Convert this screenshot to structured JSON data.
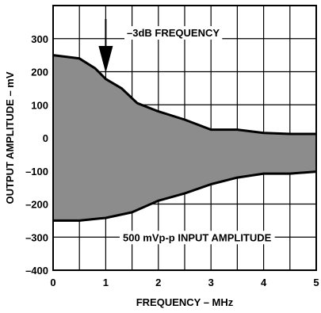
{
  "chart_data": {
    "type": "area",
    "title": "",
    "xlabel": "FREQUENCY – MHz",
    "ylabel": "OUTPUT AMPLITUDE – mV",
    "xlim": [
      0,
      5
    ],
    "ylim": [
      -400,
      400
    ],
    "x_ticks": [
      "0",
      "1",
      "2",
      "3",
      "4",
      "5"
    ],
    "y_ticks": [
      "300",
      "200",
      "100",
      "0",
      "–100",
      "–200",
      "–300",
      "–400"
    ],
    "y_tick_values": [
      300,
      200,
      100,
      0,
      -100,
      -200,
      -300,
      -400
    ],
    "x_tick_values": [
      0,
      1,
      2,
      3,
      4,
      5
    ],
    "grid": true,
    "colors": {
      "fill": "#8c8c8c",
      "line": "#000000",
      "grid": "#000000"
    },
    "series": [
      {
        "x": [
          0,
          0.5,
          0.8,
          1.0,
          1.3,
          1.6,
          2.0,
          2.5,
          3.0,
          3.5,
          4.0,
          4.5,
          5.0
        ],
        "values": [
          250,
          240,
          210,
          178,
          150,
          105,
          80,
          55,
          25,
          25,
          15,
          12,
          12
        ]
      },
      {
        "x": [
          0,
          0.5,
          1.0,
          1.5,
          2.0,
          2.5,
          3.0,
          3.5,
          4.0,
          4.5,
          5.0
        ],
        "values": [
          -250,
          -250,
          -242,
          -225,
          -190,
          -168,
          -140,
          -120,
          -108,
          -108,
          -102
        ]
      }
    ],
    "annotations": [
      {
        "text": "–3dB FREQUENCY",
        "x": 1.0,
        "arrow": true
      },
      {
        "text": "500 mVp-p INPUT AMPLITUDE"
      }
    ]
  }
}
